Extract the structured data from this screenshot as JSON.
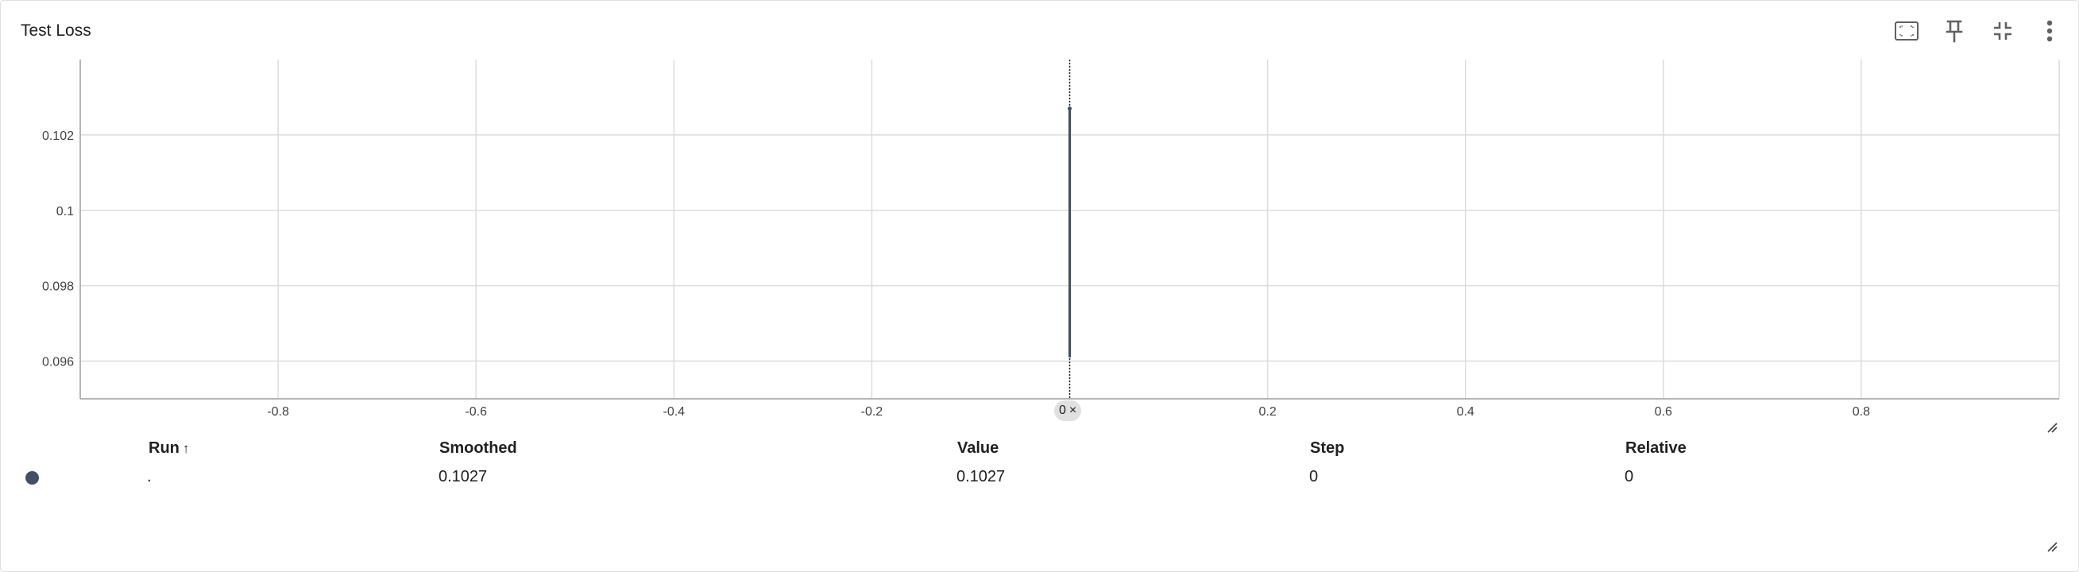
{
  "card": {
    "title": "Test Loss"
  },
  "toolbar": {
    "buttons": [
      {
        "name": "fit-domain-button",
        "icon": "fit-screen-icon"
      },
      {
        "name": "pin-button",
        "icon": "pin-icon"
      },
      {
        "name": "collapse-button",
        "icon": "collapse-icon"
      },
      {
        "name": "more-options-button",
        "icon": "more-vert-icon"
      }
    ]
  },
  "chart_data": {
    "type": "line",
    "title": "",
    "xlabel": "",
    "ylabel": "",
    "xlim": [
      -1,
      1
    ],
    "ylim": [
      0.095,
      0.104
    ],
    "x_ticks": [
      -0.8,
      -0.6,
      -0.4,
      -0.2,
      0,
      0.2,
      0.4,
      0.6,
      0.8
    ],
    "x_tick_labels": [
      "-0.8",
      "-0.6",
      "-0.4",
      "-0.2",
      "",
      "0.2",
      "0.4",
      "0.6",
      "0.8"
    ],
    "y_ticks": [
      0.096,
      0.098,
      0.1,
      0.102
    ],
    "y_tick_labels": [
      "0.096",
      "0.098",
      "0.1",
      "0.102"
    ],
    "grid": true,
    "series": [
      {
        "x": [
          0
        ],
        "y": [
          0.1027
        ],
        "color": "#425066"
      }
    ],
    "hover_step": 0
  },
  "hover_chip": {
    "label": "0",
    "close_symbol": "×"
  },
  "table": {
    "headers": {
      "run": "Run",
      "run_sort": "↑",
      "smoothed": "Smoothed",
      "value": "Value",
      "step": "Step",
      "relative": "Relative"
    },
    "rows": [
      {
        "run": ".",
        "smoothed": "0.1027",
        "value": "0.1027",
        "step": "0",
        "relative": "0",
        "color": "#425066"
      }
    ]
  }
}
